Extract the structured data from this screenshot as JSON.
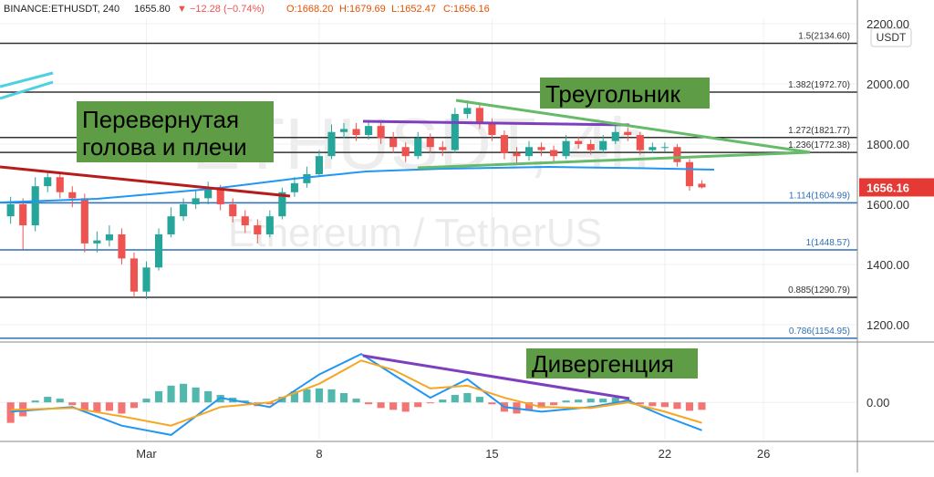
{
  "chart_data": {
    "type": "candlestick",
    "header": {
      "symbol": "BINANCE:ETHUSDT, 240",
      "last": "1655.80",
      "change": "▼ −12.28 (−0.74%)",
      "open": "O:1668.20",
      "high": "H:1679.69",
      "low": "L:1652.47",
      "close": "C:1656.16"
    },
    "watermark": "ETHUSDT, 4h",
    "watermark_sub": "Ethereum / TetherUS",
    "currency": "USDT",
    "x": [
      -4.5,
      -4,
      -3.5,
      -3,
      -2.5,
      -2,
      -1.5,
      -1,
      -0.5,
      0,
      0.5,
      1,
      1.5,
      2,
      2.5,
      3,
      3.5,
      4,
      4.5,
      5,
      5.5,
      6,
      6.5,
      7,
      7.5,
      8,
      8.5,
      9,
      9.5,
      10,
      10.5,
      11,
      11.5,
      12,
      12.5,
      13,
      13.5,
      14,
      14.5,
      15,
      15.5,
      16,
      16.5,
      17,
      17.5,
      18,
      18.5,
      19,
      19.5,
      20,
      20.5,
      21,
      21.5,
      22,
      22.5,
      23,
      23.5
    ],
    "open": [
      1560,
      1600,
      1530,
      1660,
      1690,
      1640,
      1620,
      1470,
      1480,
      1500,
      1420,
      1310,
      1390,
      1500,
      1560,
      1600,
      1620,
      1650,
      1600,
      1560,
      1530,
      1500,
      1560,
      1640,
      1670,
      1700,
      1760,
      1840,
      1850,
      1830,
      1860,
      1820,
      1790,
      1760,
      1820,
      1790,
      1780,
      1900,
      1920,
      1870,
      1830,
      1770,
      1760,
      1790,
      1780,
      1760,
      1810,
      1800,
      1780,
      1810,
      1840,
      1830,
      1780,
      1790,
      1790,
      1740,
      1668.2
    ],
    "high": [
      1625,
      1620,
      1690,
      1710,
      1705,
      1660,
      1635,
      1510,
      1530,
      1520,
      1440,
      1410,
      1520,
      1590,
      1620,
      1645,
      1675,
      1665,
      1620,
      1580,
      1550,
      1580,
      1655,
      1690,
      1725,
      1780,
      1865,
      1870,
      1870,
      1880,
      1875,
      1840,
      1805,
      1840,
      1835,
      1810,
      1920,
      1945,
      1935,
      1885,
      1845,
      1790,
      1810,
      1805,
      1795,
      1830,
      1825,
      1815,
      1830,
      1860,
      1855,
      1840,
      1805,
      1805,
      1800,
      1750,
      1679.69
    ],
    "low": [
      1535,
      1450,
      1510,
      1640,
      1620,
      1590,
      1440,
      1440,
      1460,
      1400,
      1290,
      1285,
      1380,
      1490,
      1545,
      1585,
      1600,
      1580,
      1540,
      1505,
      1470,
      1490,
      1550,
      1625,
      1655,
      1690,
      1750,
      1820,
      1810,
      1815,
      1800,
      1770,
      1740,
      1750,
      1770,
      1760,
      1770,
      1885,
      1850,
      1810,
      1750,
      1735,
      1745,
      1760,
      1740,
      1750,
      1785,
      1765,
      1770,
      1800,
      1810,
      1765,
      1770,
      1775,
      1725,
      1645,
      1652.47
    ],
    "close": [
      1600,
      1530,
      1660,
      1690,
      1640,
      1620,
      1470,
      1480,
      1500,
      1420,
      1310,
      1390,
      1500,
      1560,
      1600,
      1620,
      1650,
      1600,
      1560,
      1530,
      1500,
      1560,
      1640,
      1670,
      1700,
      1760,
      1840,
      1850,
      1830,
      1860,
      1820,
      1790,
      1760,
      1820,
      1790,
      1780,
      1900,
      1920,
      1870,
      1830,
      1770,
      1760,
      1790,
      1780,
      1760,
      1810,
      1800,
      1780,
      1810,
      1840,
      1830,
      1780,
      1790,
      1790,
      1740,
      1660,
      1656.16
    ],
    "up_color": "#26a69a",
    "down_color": "#ef5350",
    "xlim": [
      -4.93,
      29.8
    ],
    "xticks": [
      {
        "value": 1,
        "label": "Mar"
      },
      8,
      15,
      22,
      26
    ],
    "ylim": [
      1150,
      2218
    ],
    "yticks": [
      {
        "value": 1200,
        "label": "1200.00"
      },
      {
        "value": 1400,
        "label": "1400.00"
      },
      {
        "value": 1600,
        "label": "1600.00"
      },
      {
        "value": 1800,
        "label": "1800.00"
      },
      {
        "value": 2000,
        "label": "2000.00"
      },
      {
        "value": 2200,
        "label": "2200.00"
      }
    ],
    "moving_average": {
      "color": "#2196f3",
      "x": [
        -4.93,
        -1,
        3.6,
        7,
        9.9,
        13,
        17.3,
        21,
        24
      ],
      "values": [
        1606,
        1618,
        1651,
        1685,
        1709,
        1718,
        1724,
        1720,
        1715
      ]
    },
    "fib_levels": [
      {
        "label": "1.5(2134.60)",
        "value": 2134.6,
        "color": "#333333"
      },
      {
        "label": "1.382(1972.70)",
        "value": 1972.7,
        "color": "#333333"
      },
      {
        "label": "1.272(1821.77)",
        "value": 1821.77,
        "color": "#333333"
      },
      {
        "label": "1.236(1772.38)",
        "value": 1772.38,
        "color": "#333333"
      },
      {
        "label": "1.114(1604.99)",
        "value": 1604.99,
        "color": "#2f6fb5"
      },
      {
        "label": "1(1448.57)",
        "value": 1448.57,
        "color": "#2f6fb5"
      },
      {
        "label": "0.885(1290.79)",
        "value": 1290.79,
        "color": "#333333"
      },
      {
        "label": "0.786(1154.95)",
        "value": 1154.95,
        "color": "#2f6fb5"
      }
    ],
    "annotations": {
      "pattern": [
        "Перевернутая",
        "голова и плечи"
      ],
      "triangle": "Треугольник",
      "divergence": "Дивергенция"
    },
    "macd": {
      "ylim": [
        -40,
        60
      ],
      "yticks": [
        {
          "value": 0,
          "label": "0.00"
        }
      ],
      "histogram": [
        -22,
        -15,
        2,
        6,
        4,
        -3,
        -8,
        -10,
        -9,
        -12,
        -6,
        4,
        12,
        18,
        20,
        16,
        12,
        8,
        5,
        2,
        -4,
        -2,
        6,
        12,
        14,
        15,
        14,
        10,
        4,
        -2,
        -6,
        -8,
        -10,
        -5,
        -1,
        3,
        8,
        10,
        6,
        -2,
        -10,
        -12,
        -9,
        -6,
        -3,
        2,
        3,
        4,
        4,
        5,
        3,
        -2,
        -4,
        -5,
        -7,
        -9,
        -8
      ],
      "line": {
        "color": "#2196f3",
        "x": [
          -4.5,
          -2,
          0,
          2,
          4,
          6,
          8,
          9.7,
          11,
          12.5,
          14,
          15.5,
          17,
          19,
          20.5,
          22,
          23.5
        ],
        "values": [
          -10,
          -5,
          -25,
          -35,
          5,
          -5,
          30,
          52,
          30,
          5,
          25,
          -5,
          -10,
          -5,
          2,
          -15,
          -30
        ]
      },
      "signal": {
        "color": "#f5a623",
        "x": [
          -4.5,
          -2,
          0,
          2,
          4,
          6,
          8,
          9.7,
          11,
          12.5,
          14,
          15.5,
          17,
          19,
          20.5,
          22,
          23.5
        ],
        "values": [
          -8,
          -6,
          -15,
          -25,
          -5,
          0,
          20,
          45,
          35,
          15,
          18,
          5,
          -5,
          -6,
          0,
          -10,
          -22
        ]
      }
    }
  }
}
